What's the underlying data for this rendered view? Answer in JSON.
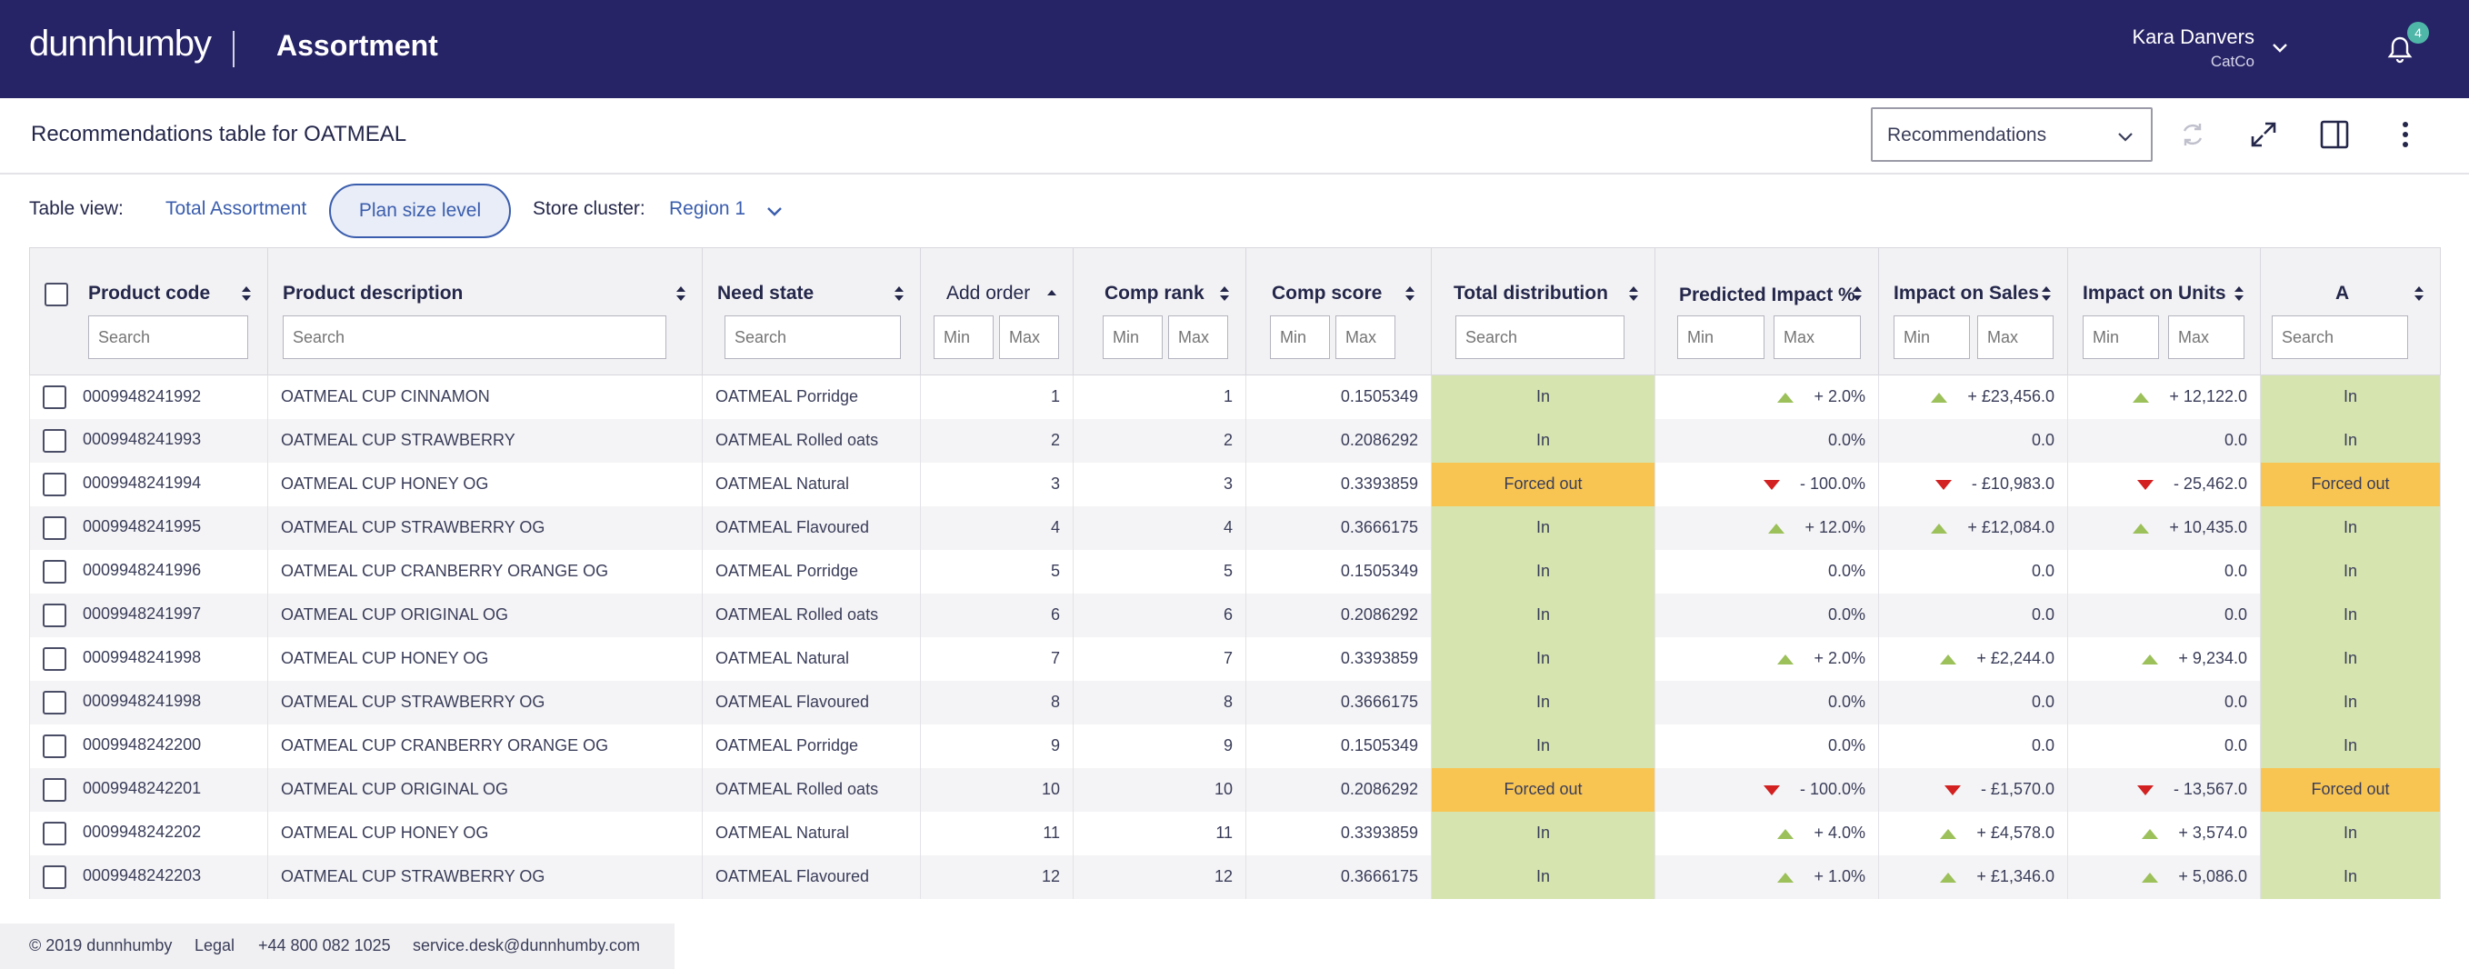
{
  "header": {
    "logo": "dunnhumby",
    "app_title": "Assortment",
    "user_name": "Kara Danvers",
    "user_org": "CatCo",
    "notification_count": "4"
  },
  "subheader": {
    "title": "Recommendations table for OATMEAL",
    "view_select": "Recommendations"
  },
  "toolbar": {
    "table_view_label": "Table view:",
    "total_assortment": "Total Assortment",
    "plan_size_level": "Plan size level",
    "store_cluster_label": "Store cluster:",
    "store_cluster_value": "Region 1"
  },
  "table": {
    "columns": [
      {
        "label": "Product code",
        "filter": "Search"
      },
      {
        "label": "Product description",
        "filter": "Search"
      },
      {
        "label": "Need state",
        "filter": "Search"
      },
      {
        "label": "Add order",
        "min": "Min",
        "max": "Max"
      },
      {
        "label": "Comp rank",
        "min": "Min",
        "max": "Max"
      },
      {
        "label": "Comp score",
        "min": "Min",
        "max": "Max"
      },
      {
        "label": "Total distribution",
        "filter": "Search"
      },
      {
        "label": "Predicted Impact %",
        "min": "Min",
        "max": "Max"
      },
      {
        "label": "Impact on Sales",
        "min": "Min",
        "max": "Max"
      },
      {
        "label": "Impact on Units",
        "min": "Min",
        "max": "Max"
      },
      {
        "label": "A",
        "filter": "Search"
      }
    ],
    "rows": [
      {
        "code": "0009948241992",
        "desc": "OATMEAL CUP CINNAMON",
        "need": "OATMEAL Porridge",
        "add": "1",
        "rank": "1",
        "score": "0.1505349",
        "dist": "In",
        "pi": "+ 2.0%",
        "pi_dir": "up",
        "sales": "+ £23,456.0",
        "sales_dir": "up",
        "units": "+ 12,122.0",
        "units_dir": "up",
        "a": "In"
      },
      {
        "code": "0009948241993",
        "desc": "OATMEAL CUP STRAWBERRY",
        "need": "OATMEAL Rolled oats",
        "add": "2",
        "rank": "2",
        "score": "0.2086292",
        "dist": "In",
        "pi": "0.0%",
        "pi_dir": "",
        "sales": "0.0",
        "sales_dir": "",
        "units": "0.0",
        "units_dir": "",
        "a": "In"
      },
      {
        "code": "0009948241994",
        "desc": "OATMEAL CUP HONEY OG",
        "need": "OATMEAL Natural",
        "add": "3",
        "rank": "3",
        "score": "0.3393859",
        "dist": "Forced out",
        "pi": "- 100.0%",
        "pi_dir": "down",
        "sales": "- £10,983.0",
        "sales_dir": "down",
        "units": "- 25,462.0",
        "units_dir": "down",
        "a": "Forced out"
      },
      {
        "code": "0009948241995",
        "desc": "OATMEAL CUP STRAWBERRY OG",
        "need": "OATMEAL Flavoured",
        "add": "4",
        "rank": "4",
        "score": "0.3666175",
        "dist": "In",
        "pi": "+ 12.0%",
        "pi_dir": "up",
        "sales": "+ £12,084.0",
        "sales_dir": "up",
        "units": "+ 10,435.0",
        "units_dir": "up",
        "a": "In"
      },
      {
        "code": "0009948241996",
        "desc": "OATMEAL CUP CRANBERRY ORANGE OG",
        "need": "OATMEAL Porridge",
        "add": "5",
        "rank": "5",
        "score": "0.1505349",
        "dist": "In",
        "pi": "0.0%",
        "pi_dir": "",
        "sales": "0.0",
        "sales_dir": "",
        "units": "0.0",
        "units_dir": "",
        "a": "In"
      },
      {
        "code": "0009948241997",
        "desc": "OATMEAL CUP ORIGINAL OG",
        "need": "OATMEAL Rolled oats",
        "add": "6",
        "rank": "6",
        "score": "0.2086292",
        "dist": "In",
        "pi": "0.0%",
        "pi_dir": "",
        "sales": "0.0",
        "sales_dir": "",
        "units": "0.0",
        "units_dir": "",
        "a": "In"
      },
      {
        "code": "0009948241998",
        "desc": "OATMEAL CUP HONEY OG",
        "need": "OATMEAL Natural",
        "add": "7",
        "rank": "7",
        "score": "0.3393859",
        "dist": "In",
        "pi": "+ 2.0%",
        "pi_dir": "up",
        "sales": "+ £2,244.0",
        "sales_dir": "up",
        "units": "+ 9,234.0",
        "units_dir": "up",
        "a": "In"
      },
      {
        "code": "0009948241998",
        "desc": "OATMEAL CUP STRAWBERRY OG",
        "need": "OATMEAL Flavoured",
        "add": "8",
        "rank": "8",
        "score": "0.3666175",
        "dist": "In",
        "pi": "0.0%",
        "pi_dir": "",
        "sales": "0.0",
        "sales_dir": "",
        "units": "0.0",
        "units_dir": "",
        "a": "In"
      },
      {
        "code": "0009948242200",
        "desc": "OATMEAL CUP CRANBERRY ORANGE OG",
        "need": "OATMEAL Porridge",
        "add": "9",
        "rank": "9",
        "score": "0.1505349",
        "dist": "In",
        "pi": "0.0%",
        "pi_dir": "",
        "sales": "0.0",
        "sales_dir": "",
        "units": "0.0",
        "units_dir": "",
        "a": "In"
      },
      {
        "code": "0009948242201",
        "desc": "OATMEAL CUP ORIGINAL OG",
        "need": "OATMEAL Rolled oats",
        "add": "10",
        "rank": "10",
        "score": "0.2086292",
        "dist": "Forced out",
        "pi": "- 100.0%",
        "pi_dir": "down",
        "sales": "- £1,570.0",
        "sales_dir": "down",
        "units": "- 13,567.0",
        "units_dir": "down",
        "a": "Forced out"
      },
      {
        "code": "0009948242202",
        "desc": "OATMEAL CUP HONEY OG",
        "need": "OATMEAL Natural",
        "add": "11",
        "rank": "11",
        "score": "0.3393859",
        "dist": "In",
        "pi": "+ 4.0%",
        "pi_dir": "up",
        "sales": "+ £4,578.0",
        "sales_dir": "up",
        "units": "+ 3,574.0",
        "units_dir": "up",
        "a": "In"
      },
      {
        "code": "0009948242203",
        "desc": "OATMEAL CUP STRAWBERRY OG",
        "need": "OATMEAL Flavoured",
        "add": "12",
        "rank": "12",
        "score": "0.3666175",
        "dist": "In",
        "pi": "+ 1.0%",
        "pi_dir": "up",
        "sales": "+ £1,346.0",
        "sales_dir": "up",
        "units": "+ 5,086.0",
        "units_dir": "up",
        "a": "In"
      }
    ]
  },
  "footer": {
    "copyright": "© 2019 dunnhumby",
    "legal": "Legal",
    "phone": "+44 800 082 1025",
    "email": "service.desk@dunnhumby.com"
  },
  "colors": {
    "topbar": "#262366",
    "accent_blue": "#3a5dad",
    "cell_in": "#d6e4b0",
    "cell_forced_out": "#f8c553",
    "arrow_up": "#9cc05a",
    "arrow_down": "#d32020"
  }
}
